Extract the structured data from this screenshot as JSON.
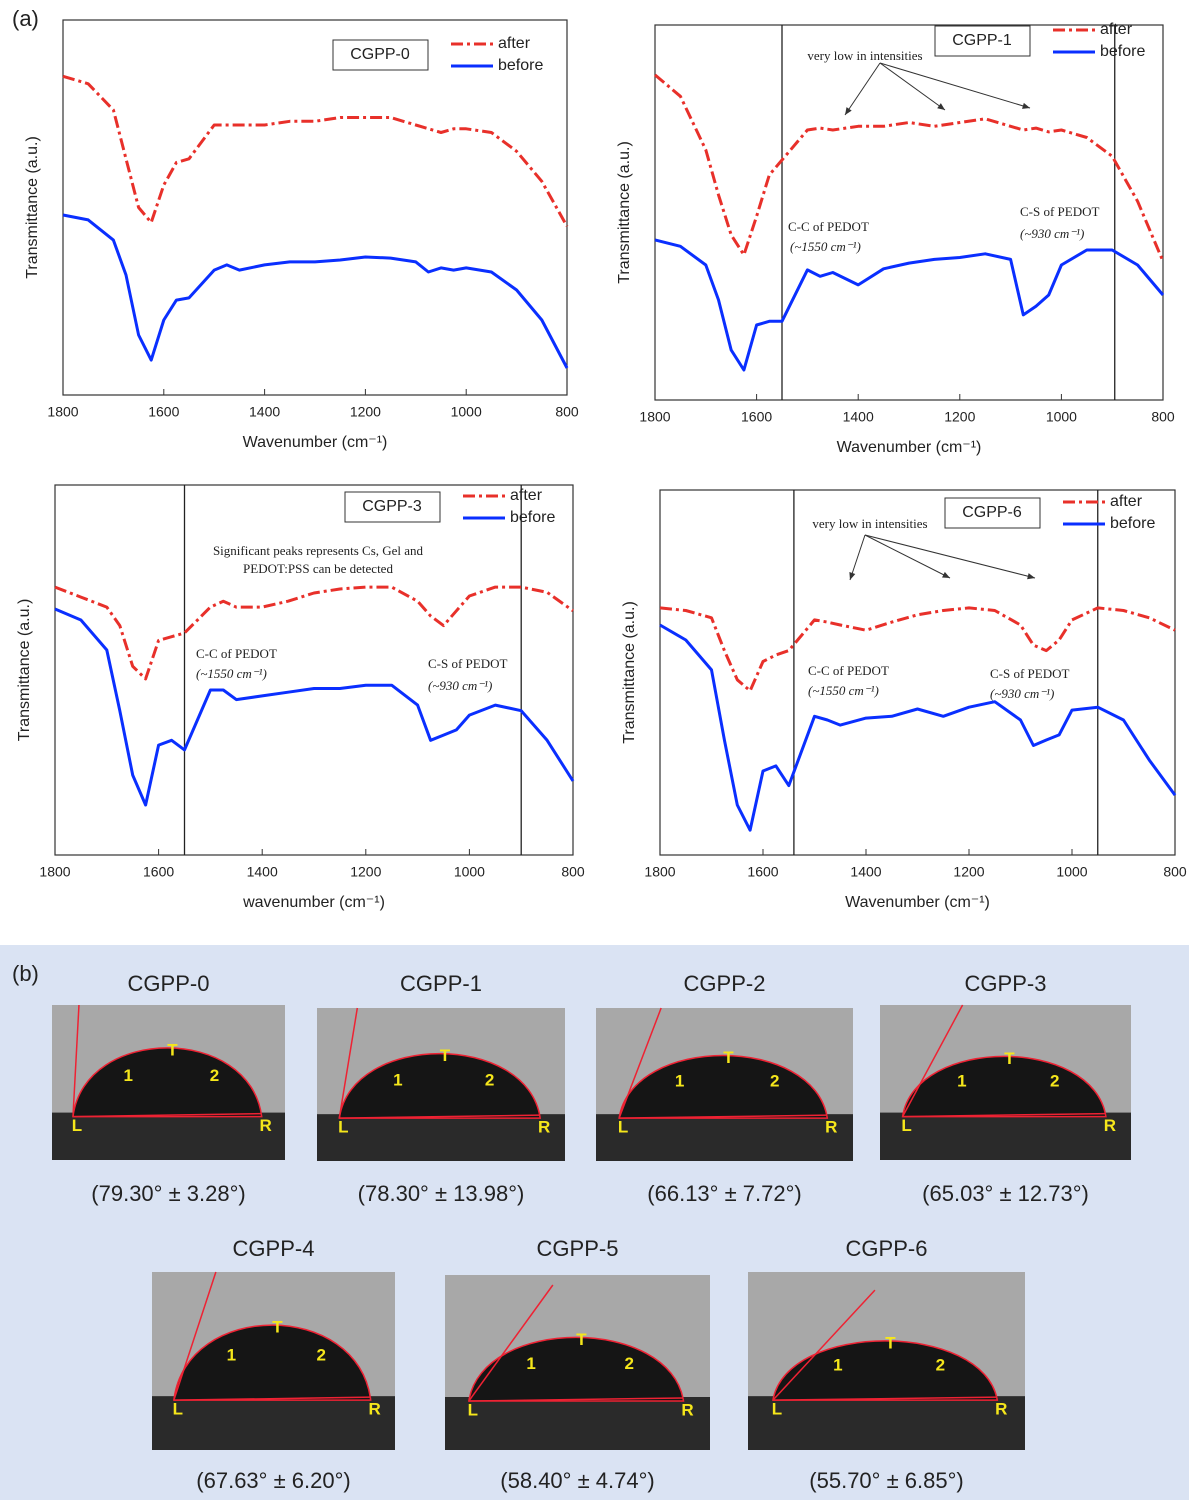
{
  "panel_a_label": "(a)",
  "chart_data": [
    {
      "type": "line",
      "title": "CGPP-0",
      "xlabel": "Wavenumber (cm⁻¹)",
      "ylabel": "Transmittance (a.u.)",
      "xlim": [
        1800,
        800
      ],
      "ylim": [
        0,
        100
      ],
      "xticks": [
        1800,
        1600,
        1400,
        1200,
        1000,
        800
      ],
      "x": [
        1800,
        1750,
        1700,
        1675,
        1650,
        1625,
        1600,
        1575,
        1550,
        1500,
        1475,
        1450,
        1400,
        1350,
        1300,
        1250,
        1200,
        1150,
        1100,
        1075,
        1050,
        1025,
        1000,
        950,
        900,
        850,
        800
      ],
      "series": [
        {
          "name": "after",
          "color": "#e8302a",
          "linestyle": "dashdot",
          "values": [
            85,
            83,
            76,
            63,
            50,
            46,
            56,
            62,
            63,
            72,
            72,
            72,
            72,
            73,
            73,
            74,
            74,
            74,
            72,
            71,
            70,
            71,
            71,
            70,
            65,
            57,
            45
          ]
        },
        {
          "name": "before",
          "color": "#0a2fff",
          "linestyle": "solid",
          "values": [
            48,
            46.7,
            41.3,
            32,
            16,
            9.3,
            20,
            25.3,
            25.9,
            33.3,
            34.7,
            33.3,
            34.7,
            35.5,
            35.5,
            36,
            36.8,
            36.5,
            35.5,
            32.8,
            33.9,
            33.3,
            33.9,
            32.8,
            28,
            20,
            7.2
          ]
        }
      ],
      "annotations": [],
      "vlines": []
    },
    {
      "type": "line",
      "title": "CGPP-1",
      "xlabel": "Wavenumber (cm⁻¹)",
      "ylabel": "Transmittance (a.u.)",
      "xlim": [
        1800,
        800
      ],
      "ylim": [
        0,
        100
      ],
      "xticks": [
        1800,
        1600,
        1400,
        1200,
        1000,
        800
      ],
      "x": [
        1800,
        1750,
        1700,
        1675,
        1650,
        1625,
        1600,
        1575,
        1550,
        1500,
        1475,
        1450,
        1400,
        1350,
        1300,
        1250,
        1200,
        1150,
        1100,
        1075,
        1050,
        1025,
        1000,
        950,
        900,
        850,
        800
      ],
      "series": [
        {
          "name": "after",
          "color": "#e8302a",
          "linestyle": "dashdot",
          "values": [
            86.7,
            81,
            66.7,
            54.7,
            44,
            38.7,
            49,
            60,
            64,
            72,
            72.5,
            72,
            73,
            73,
            74,
            73,
            74,
            75,
            73,
            72,
            72.5,
            71.5,
            72,
            70,
            65,
            53,
            37
          ]
        },
        {
          "name": "before",
          "color": "#0a2fff",
          "linestyle": "solid",
          "values": [
            42.7,
            41,
            36,
            26.7,
            13.3,
            8,
            20,
            21,
            21,
            34.7,
            33,
            34,
            30.7,
            35,
            36.5,
            37.5,
            38,
            39,
            37.5,
            22.7,
            25,
            28,
            36,
            40,
            40,
            36,
            28
          ]
        }
      ],
      "annotations": [
        "very low in intensities",
        "C-C of PEDOT",
        "(~1550 cm⁻¹)",
        "C-S of PEDOT",
        "(~930 cm⁻¹)"
      ],
      "vlines": [
        1550,
        895
      ]
    },
    {
      "type": "line",
      "title": "CGPP-3",
      "xlabel": "wavenumber (cm⁻¹)",
      "ylabel": "Transmittance (a.u.)",
      "xlim": [
        1800,
        800
      ],
      "ylim": [
        0,
        100
      ],
      "xticks": [
        1800,
        1600,
        1400,
        1200,
        1000,
        800
      ],
      "x": [
        1800,
        1750,
        1700,
        1675,
        1650,
        1625,
        1600,
        1575,
        1550,
        1500,
        1475,
        1450,
        1400,
        1350,
        1300,
        1250,
        1200,
        1150,
        1100,
        1075,
        1050,
        1025,
        1000,
        950,
        900,
        850,
        800
      ],
      "series": [
        {
          "name": "after",
          "color": "#e8302a",
          "linestyle": "dashdot",
          "values": [
            72.4,
            69.7,
            67,
            62,
            51,
            47.6,
            58,
            59,
            60,
            67,
            68.6,
            67,
            67,
            68.6,
            70.8,
            71.9,
            72.4,
            72.4,
            68.6,
            64.6,
            62,
            66,
            70,
            72.4,
            72.4,
            71,
            66
          ]
        },
        {
          "name": "before",
          "color": "#0a2fff",
          "linestyle": "solid",
          "values": [
            66.5,
            63.5,
            55.4,
            39,
            21.6,
            13.5,
            29.7,
            31,
            28.4,
            44.6,
            44.6,
            42,
            43,
            44,
            45,
            45,
            45.9,
            45.9,
            40.5,
            31,
            32.4,
            33.8,
            37.8,
            40.5,
            39,
            31,
            20
          ]
        }
      ],
      "annotations": [
        "Significant peaks represents Cs, Gel and",
        "PEDOT:PSS can be detected",
        "C-C of PEDOT",
        "(~1550 cm⁻¹)",
        "C-S of PEDOT",
        "(~930 cm⁻¹)"
      ],
      "vlines": [
        1550,
        900
      ]
    },
    {
      "type": "line",
      "title": "CGPP-6",
      "xlabel": "Wavenumber (cm⁻¹)",
      "ylabel": "Transmittance (a.u.)",
      "xlim": [
        1800,
        800
      ],
      "ylim": [
        0,
        100
      ],
      "xticks": [
        1800,
        1600,
        1400,
        1200,
        1000,
        800
      ],
      "x": [
        1800,
        1750,
        1700,
        1675,
        1650,
        1625,
        1600,
        1575,
        1550,
        1500,
        1475,
        1450,
        1400,
        1350,
        1300,
        1250,
        1200,
        1150,
        1100,
        1075,
        1050,
        1025,
        1000,
        950,
        900,
        850,
        800
      ],
      "series": [
        {
          "name": "after",
          "color": "#e8302a",
          "linestyle": "dashdot",
          "values": [
            67.7,
            67,
            65,
            56,
            48,
            45,
            53,
            54.8,
            56,
            64.4,
            63.8,
            63,
            61.6,
            63.8,
            65.8,
            67,
            67.7,
            67,
            63,
            57.5,
            56,
            58.9,
            64.4,
            67.7,
            67,
            65,
            61.6
          ]
        },
        {
          "name": "before",
          "color": "#0a2fff",
          "linestyle": "solid",
          "values": [
            63,
            58.9,
            50.7,
            31.5,
            13.7,
            6.8,
            23,
            24.4,
            19,
            38,
            37,
            35.6,
            37.5,
            38,
            40,
            38,
            40.5,
            42,
            37,
            30,
            31.5,
            32.9,
            39.7,
            40.5,
            37,
            26,
            16.4
          ]
        }
      ],
      "annotations": [
        "very low in intensities",
        "C-C of PEDOT",
        "(~1550 cm⁻¹)",
        "C-S of PEDOT",
        "(~930 cm⁻¹)"
      ],
      "vlines": [
        1540,
        950
      ]
    }
  ],
  "panel_b": {
    "label": "(b)",
    "point_labels": [
      "L",
      "1",
      "T",
      "2",
      "R"
    ],
    "samples": [
      {
        "name": "CGPP-0",
        "angle": "(79.30° ± 3.28°)"
      },
      {
        "name": "CGPP-1",
        "angle": "(78.30° ± 13.98°)"
      },
      {
        "name": "CGPP-2",
        "angle": "(66.13° ± 7.72°)"
      },
      {
        "name": "CGPP-3",
        "angle": "(65.03° ± 12.73°)"
      },
      {
        "name": "CGPP-4",
        "angle": "(67.63° ± 6.20°)"
      },
      {
        "name": "CGPP-5",
        "angle": "(58.40° ± 4.74°)"
      },
      {
        "name": "CGPP-6",
        "angle": "(55.70° ± 6.85°)"
      }
    ]
  }
}
